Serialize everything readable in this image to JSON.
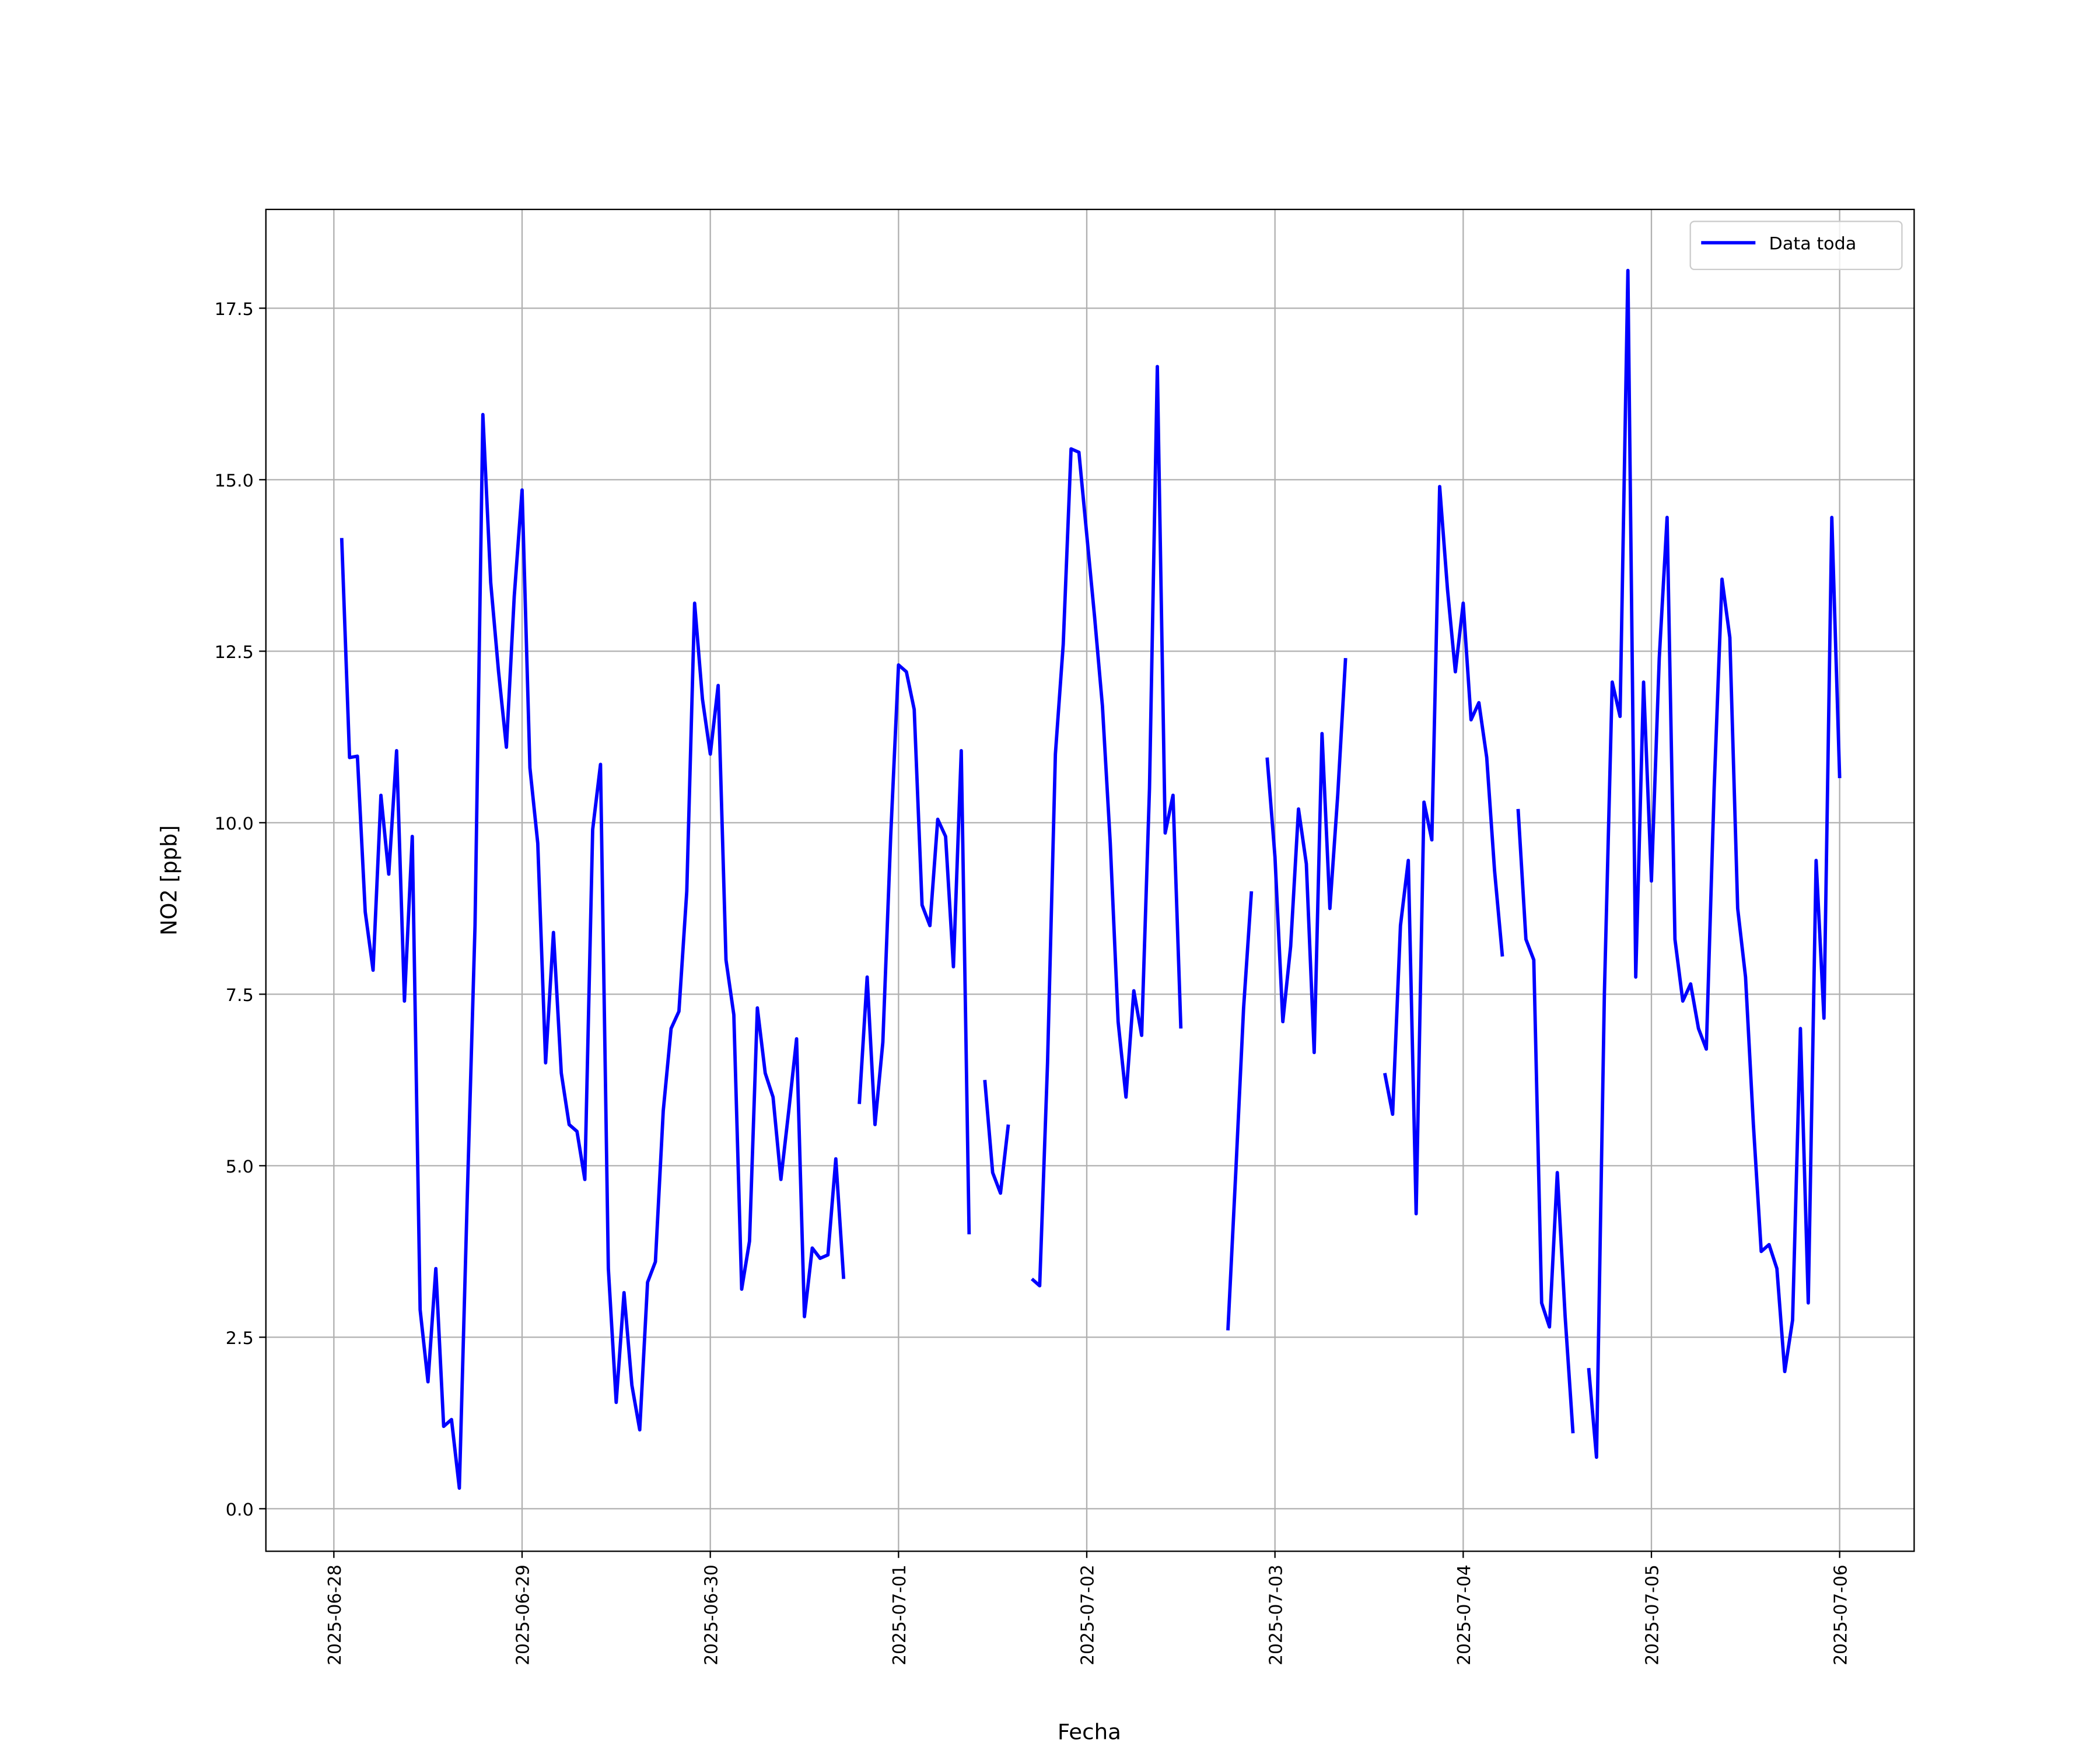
{
  "chart_data": {
    "type": "line",
    "xlabel": "Fecha",
    "ylabel": "NO2 [ppb]",
    "legend": "upper right",
    "grid": true,
    "xlim": [
      "2025-06-27 15:20",
      "2025-07-06 09:30"
    ],
    "ylim": [
      -0.62,
      18.94
    ],
    "xticks": [
      "2025-06-28",
      "2025-06-29",
      "2025-06-30",
      "2025-07-01",
      "2025-07-02",
      "2025-07-03",
      "2025-07-04",
      "2025-07-05",
      "2025-07-06"
    ],
    "yticks": [
      {
        "value": 0,
        "label": "0.0"
      },
      2.5,
      {
        "value": 5,
        "label": "5.0"
      },
      7.5,
      {
        "value": 10,
        "label": "10.0"
      },
      12.5,
      {
        "value": 15,
        "label": "15.0"
      },
      17.5
    ],
    "x": [
      "2025-06-28 01:00",
      "2025-06-28 02:00",
      "2025-06-28 03:00",
      "2025-06-28 04:00",
      "2025-06-28 05:00",
      "2025-06-28 06:00",
      "2025-06-28 07:00",
      "2025-06-28 08:00",
      "2025-06-28 09:00",
      "2025-06-28 10:00",
      "2025-06-28 11:00",
      "2025-06-28 12:00",
      "2025-06-28 13:00",
      "2025-06-28 14:00",
      "2025-06-28 15:00",
      "2025-06-28 16:00",
      "2025-06-28 17:00",
      "2025-06-28 18:00",
      "2025-06-28 19:00",
      "2025-06-28 20:00",
      "2025-06-28 21:00",
      "2025-06-28 22:00",
      "2025-06-28 23:00",
      "2025-06-29 00:00",
      "2025-06-29 01:00",
      "2025-06-29 02:00",
      "2025-06-29 03:00",
      "2025-06-29 04:00",
      "2025-06-29 05:00",
      "2025-06-29 06:00",
      "2025-06-29 07:00",
      "2025-06-29 08:00",
      "2025-06-29 09:00",
      "2025-06-29 10:00",
      "2025-06-29 11:00",
      "2025-06-29 12:00",
      "2025-06-29 13:00",
      "2025-06-29 14:00",
      "2025-06-29 15:00",
      "2025-06-29 16:00",
      "2025-06-29 17:00",
      "2025-06-29 18:00",
      "2025-06-29 19:00",
      "2025-06-29 20:00",
      "2025-06-29 21:00",
      "2025-06-29 22:00",
      "2025-06-29 23:00",
      "2025-06-30 00:00",
      "2025-06-30 01:00",
      "2025-06-30 02:00",
      "2025-06-30 03:00",
      "2025-06-30 04:00",
      "2025-06-30 05:00",
      "2025-06-30 06:00",
      "2025-06-30 07:00",
      "2025-06-30 08:00",
      "2025-06-30 09:00",
      "2025-06-30 10:00",
      "2025-06-30 11:00",
      "2025-06-30 12:00",
      "2025-06-30 13:00",
      "2025-06-30 14:00",
      "2025-06-30 15:00",
      "2025-06-30 16:00",
      "2025-06-30 17:00",
      "2025-06-30 18:00",
      "2025-06-30 19:00",
      "2025-06-30 20:00",
      "2025-06-30 21:00",
      "2025-06-30 22:00",
      "2025-06-30 23:00",
      "2025-07-01 00:00",
      "2025-07-01 01:00",
      "2025-07-01 02:00",
      "2025-07-01 03:00",
      "2025-07-01 04:00",
      "2025-07-01 05:00",
      "2025-07-01 06:00",
      "2025-07-01 07:00",
      "2025-07-01 08:00",
      "2025-07-01 09:00",
      "2025-07-01 10:00",
      "2025-07-01 11:00",
      "2025-07-01 12:00",
      "2025-07-01 13:00",
      "2025-07-01 14:00",
      "2025-07-01 15:00",
      "2025-07-01 16:00",
      "2025-07-01 17:00",
      "2025-07-01 18:00",
      "2025-07-01 19:00",
      "2025-07-01 20:00",
      "2025-07-01 21:00",
      "2025-07-01 22:00",
      "2025-07-01 23:00",
      "2025-07-02 00:00",
      "2025-07-02 01:00",
      "2025-07-02 02:00",
      "2025-07-02 03:00",
      "2025-07-02 04:00",
      "2025-07-02 05:00",
      "2025-07-02 06:00",
      "2025-07-02 07:00",
      "2025-07-02 08:00",
      "2025-07-02 09:00",
      "2025-07-02 10:00",
      "2025-07-02 11:00",
      "2025-07-02 12:00",
      "2025-07-02 13:00",
      "2025-07-02 14:00",
      "2025-07-02 15:00",
      "2025-07-02 16:00",
      "2025-07-02 17:00",
      "2025-07-02 18:00",
      "2025-07-02 19:00",
      "2025-07-02 20:00",
      "2025-07-02 21:00",
      "2025-07-02 22:00",
      "2025-07-02 23:00",
      "2025-07-03 00:00",
      "2025-07-03 01:00",
      "2025-07-03 02:00",
      "2025-07-03 03:00",
      "2025-07-03 04:00",
      "2025-07-03 05:00",
      "2025-07-03 06:00",
      "2025-07-03 07:00",
      "2025-07-03 08:00",
      "2025-07-03 09:00",
      "2025-07-03 10:00",
      "2025-07-03 11:00",
      "2025-07-03 12:00",
      "2025-07-03 13:00",
      "2025-07-03 14:00",
      "2025-07-03 15:00",
      "2025-07-03 16:00",
      "2025-07-03 17:00",
      "2025-07-03 18:00",
      "2025-07-03 19:00",
      "2025-07-03 20:00",
      "2025-07-03 21:00",
      "2025-07-03 22:00",
      "2025-07-03 23:00",
      "2025-07-04 00:00",
      "2025-07-04 01:00",
      "2025-07-04 02:00",
      "2025-07-04 03:00",
      "2025-07-04 04:00",
      "2025-07-04 05:00",
      "2025-07-04 06:00",
      "2025-07-04 07:00",
      "2025-07-04 08:00",
      "2025-07-04 09:00",
      "2025-07-04 10:00",
      "2025-07-04 11:00",
      "2025-07-04 12:00",
      "2025-07-04 13:00",
      "2025-07-04 14:00",
      "2025-07-04 15:00",
      "2025-07-04 16:00",
      "2025-07-04 17:00",
      "2025-07-04 18:00",
      "2025-07-04 19:00",
      "2025-07-04 20:00",
      "2025-07-04 21:00",
      "2025-07-04 22:00",
      "2025-07-04 23:00",
      "2025-07-05 00:00",
      "2025-07-05 01:00",
      "2025-07-05 02:00",
      "2025-07-05 03:00",
      "2025-07-05 04:00",
      "2025-07-05 05:00",
      "2025-07-05 06:00",
      "2025-07-05 07:00",
      "2025-07-05 08:00",
      "2025-07-05 09:00",
      "2025-07-05 10:00",
      "2025-07-05 11:00",
      "2025-07-05 12:00",
      "2025-07-05 13:00",
      "2025-07-05 14:00",
      "2025-07-05 15:00",
      "2025-07-05 16:00",
      "2025-07-05 17:00",
      "2025-07-05 18:00",
      "2025-07-05 19:00",
      "2025-07-05 20:00",
      "2025-07-05 21:00",
      "2025-07-05 22:00",
      "2025-07-05 23:00",
      "2025-07-06 00:00"
    ],
    "series": [
      {
        "name": "Data toda",
        "color": "#0000ff",
        "values": [
          14.15,
          10.95,
          10.97,
          8.7,
          7.85,
          10.4,
          9.25,
          11.05,
          7.4,
          9.8,
          2.9,
          1.85,
          3.5,
          1.2,
          1.3,
          0.3,
          4.5,
          8.5,
          15.95,
          13.5,
          12.2,
          11.1,
          13.3,
          14.85,
          10.8,
          9.7,
          6.5,
          8.4,
          6.35,
          5.6,
          5.5,
          4.8,
          9.9,
          10.85,
          3.5,
          1.55,
          3.15,
          1.8,
          1.15,
          3.3,
          3.6,
          5.8,
          7.0,
          7.25,
          9.0,
          13.2,
          11.8,
          11.0,
          12.0,
          8.0,
          7.2,
          3.2,
          3.9,
          7.3,
          6.35,
          6.0,
          4.8,
          5.8,
          6.85,
          2.8,
          3.8,
          3.65,
          3.7,
          5.1,
          3.35,
          null,
          5.9,
          7.75,
          5.6,
          6.8,
          9.8,
          12.3,
          12.2,
          11.65,
          8.8,
          8.5,
          10.05,
          9.8,
          7.9,
          11.05,
          4.0,
          null,
          6.25,
          4.9,
          4.6,
          5.6,
          null,
          null,
          3.35,
          3.25,
          6.5,
          11.0,
          12.6,
          15.45,
          15.4,
          14.2,
          13.0,
          11.7,
          9.7,
          7.1,
          6.0,
          7.55,
          6.9,
          10.5,
          16.65,
          9.85,
          10.4,
          7.0,
          null,
          null,
          null,
          null,
          null,
          2.6,
          4.9,
          7.3,
          9.0,
          null,
          10.95,
          9.5,
          7.1,
          8.2,
          10.2,
          9.4,
          6.65,
          11.3,
          8.75,
          10.4,
          12.4,
          null,
          null,
          null,
          null,
          6.35,
          5.75,
          8.5,
          9.45,
          4.3,
          10.3,
          9.75,
          14.9,
          13.4,
          12.2,
          13.2,
          11.5,
          11.75,
          10.95,
          9.3,
          8.05,
          null,
          10.2,
          8.3,
          8.0,
          3.0,
          2.65,
          4.9,
          2.8,
          1.1,
          null,
          2.05,
          0.75,
          7.5,
          12.05,
          11.55,
          18.05,
          7.75,
          12.05,
          9.15,
          12.4,
          14.45,
          8.3,
          7.4,
          7.65,
          7.0,
          6.7,
          10.5,
          13.55,
          12.7,
          8.75,
          7.75,
          5.6,
          3.75,
          3.85,
          3.5,
          2.0,
          2.75,
          7.0,
          3.0,
          9.45,
          7.15,
          14.45,
          10.65
        ]
      }
    ]
  }
}
